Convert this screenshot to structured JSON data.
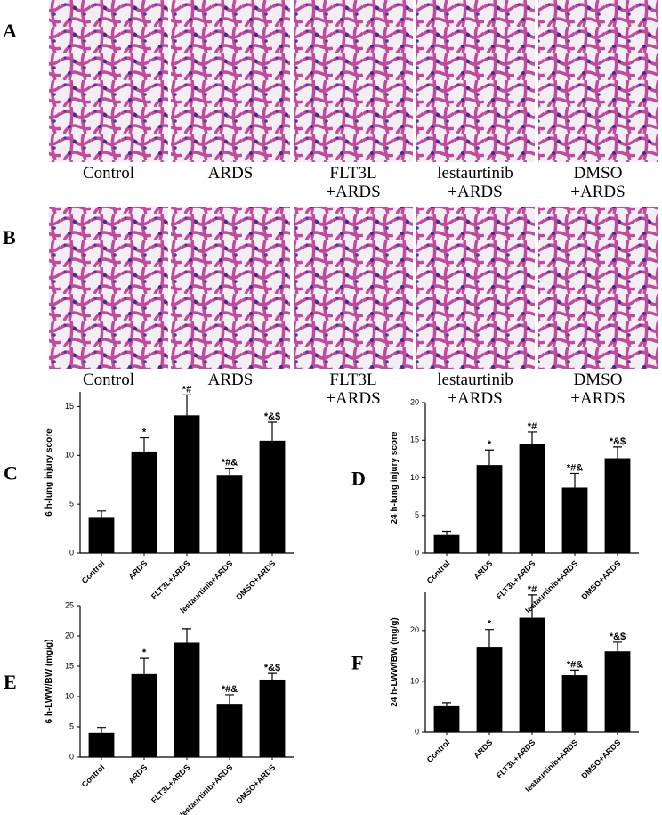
{
  "histology": {
    "rows": [
      {
        "letter": "A",
        "labels": [
          [
            "Control"
          ],
          [
            "ARDS"
          ],
          [
            "FLT3L",
            "+ARDS"
          ],
          [
            "lestaurtinib",
            "+ARDS"
          ],
          [
            "DMSO",
            "+ARDS"
          ]
        ]
      },
      {
        "letter": "B",
        "labels": [
          [
            "Control"
          ],
          [
            "ARDS"
          ],
          [
            "FLT3L",
            "+ARDS"
          ],
          [
            "lestaurtinib",
            "+ARDS"
          ],
          [
            "DMSO",
            "+ARDS"
          ]
        ]
      }
    ]
  },
  "chart_data": [
    {
      "type": "bar",
      "panel_label": "C",
      "y_label": "6 h-lung injury score",
      "color": "#000000",
      "categories": [
        "Control",
        "ARDS",
        "FLT3L+ARDS",
        "lestaurtinib+ARDS",
        "DMSO+ARDS"
      ],
      "values": [
        3.7,
        10.4,
        14.1,
        8.0,
        11.5
      ],
      "errors": [
        0.6,
        1.4,
        2.1,
        0.7,
        1.9
      ],
      "annotations": [
        null,
        "*",
        "*#",
        "*#&",
        "*&$"
      ],
      "ylim": [
        0,
        16.5
      ],
      "yticks": [
        0,
        5,
        10,
        15
      ]
    },
    {
      "type": "bar",
      "panel_label": "D",
      "y_label": "24 h-lung injury score",
      "color": "#000000",
      "categories": [
        "Control",
        "ARDS",
        "FLT3L+ARDS",
        "lestaurtinib+ARDS",
        "DMSO+ARDS"
      ],
      "values": [
        2.4,
        11.7,
        14.5,
        8.7,
        12.6
      ],
      "errors": [
        0.5,
        2.0,
        1.6,
        1.9,
        1.5
      ],
      "annotations": [
        null,
        "*",
        "*#",
        "*#&",
        "*&$"
      ],
      "ylim": [
        0,
        20
      ],
      "yticks": [
        0,
        5,
        10,
        15,
        20
      ]
    },
    {
      "type": "bar",
      "panel_label": "E",
      "y_label": "6 h-LWW/BW (mg/g)",
      "color": "#000000",
      "categories": [
        "Control",
        "ARDS",
        "FLT3L+ARDS",
        "lestaurtinib+ARDS",
        "DMSO+ARDS"
      ],
      "values": [
        4.0,
        13.7,
        18.9,
        8.8,
        12.8
      ],
      "errors": [
        0.9,
        2.6,
        2.3,
        1.5,
        1.0
      ],
      "annotations": [
        null,
        "*",
        null,
        "*#&",
        "*&$"
      ],
      "ylim": [
        0,
        25
      ],
      "yticks": [
        0,
        5,
        10,
        15,
        20,
        25
      ]
    },
    {
      "type": "bar",
      "panel_label": "F",
      "y_label": "24 h-LWW/BW (mg/g)",
      "color": "#000000",
      "categories": [
        "Control",
        "ARDS",
        "FLT3L+ARDS",
        "lestaurtinib+ARDS",
        "DMSO+ARDS"
      ],
      "values": [
        5.1,
        16.8,
        22.5,
        11.2,
        15.9
      ],
      "errors": [
        0.7,
        3.4,
        4.5,
        1.0,
        1.8
      ],
      "annotations": [
        null,
        "*",
        "*#",
        "*#&",
        "*&$"
      ],
      "ylim": [
        0,
        27.5
      ],
      "yticks": [
        0,
        10,
        20
      ]
    }
  ]
}
